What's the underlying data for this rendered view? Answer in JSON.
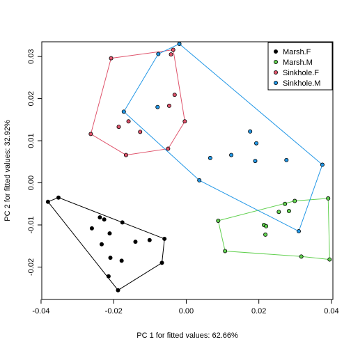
{
  "chart_data": {
    "type": "scatter",
    "title": "",
    "xlabel": "PC 1 for fitted values: 62.66%",
    "ylabel": "PC 2 for fitted values: 32.92%",
    "xlim": [
      -0.0398,
      0.0404
    ],
    "ylim": [
      -0.0277,
      0.0335
    ],
    "x_ticks": [
      -0.04,
      -0.02,
      0.0,
      0.02,
      0.04
    ],
    "x_tick_labels": [
      "-0.04",
      "-0.02",
      "0.00",
      "0.02",
      "0.04"
    ],
    "y_ticks": [
      -0.02,
      -0.01,
      0.0,
      0.01,
      0.02,
      0.03
    ],
    "y_tick_labels": [
      "-0.02",
      "-0.01",
      "0.00",
      "0.01",
      "0.02",
      "0.03"
    ],
    "grid": false,
    "legend_position": "top-right",
    "hull_outlines": true,
    "series": [
      {
        "name": "Marsh.F",
        "color": "#000000",
        "hull_color": "#000000",
        "points": [
          [
            -0.0381,
            -0.0045
          ],
          [
            -0.0352,
            -0.0035
          ],
          [
            -0.026,
            -0.0108
          ],
          [
            -0.0238,
            -0.0082
          ],
          [
            -0.0226,
            -0.0087
          ],
          [
            -0.0211,
            -0.012
          ],
          [
            -0.0233,
            -0.0146
          ],
          [
            -0.0176,
            -0.0094
          ],
          [
            -0.014,
            -0.014
          ],
          [
            -0.0101,
            -0.0136
          ],
          [
            -0.006,
            -0.0133
          ],
          [
            -0.0209,
            -0.0178
          ],
          [
            -0.0178,
            -0.0185
          ],
          [
            -0.0214,
            -0.0222
          ],
          [
            -0.0188,
            -0.0255
          ],
          [
            -0.0067,
            -0.019
          ]
        ],
        "hull": [
          [
            -0.0381,
            -0.0045
          ],
          [
            -0.0352,
            -0.0035
          ],
          [
            -0.006,
            -0.0133
          ],
          [
            -0.0067,
            -0.019
          ],
          [
            -0.0188,
            -0.0255
          ],
          [
            -0.0381,
            -0.0045
          ]
        ]
      },
      {
        "name": "Marsh.M",
        "color": "#61D04F",
        "hull_color": "#61D04F",
        "points": [
          [
            0.0088,
            -0.009
          ],
          [
            0.0107,
            -0.0162
          ],
          [
            0.0214,
            -0.01
          ],
          [
            0.022,
            -0.0103
          ],
          [
            0.0218,
            -0.0123
          ],
          [
            0.0255,
            -0.0069
          ],
          [
            0.0272,
            -0.005
          ],
          [
            0.0283,
            -0.0067
          ],
          [
            0.0299,
            -0.0043
          ],
          [
            0.0317,
            -0.0175
          ],
          [
            0.0391,
            -0.0037
          ],
          [
            0.0395,
            -0.0182
          ]
        ],
        "hull": [
          [
            0.0088,
            -0.009
          ],
          [
            0.0299,
            -0.0043
          ],
          [
            0.0391,
            -0.0037
          ],
          [
            0.0395,
            -0.0182
          ],
          [
            0.0317,
            -0.0175
          ],
          [
            0.0107,
            -0.0162
          ],
          [
            0.0088,
            -0.009
          ]
        ]
      },
      {
        "name": "Sinkhole.F",
        "color": "#DF536B",
        "hull_color": "#DF536B",
        "points": [
          [
            -0.0207,
            0.0296
          ],
          [
            -0.0263,
            0.0116
          ],
          [
            -0.0166,
            0.0066
          ],
          [
            -0.0186,
            0.0133
          ],
          [
            -0.0159,
            0.0146
          ],
          [
            -0.0127,
            0.0121
          ],
          [
            -0.0036,
            0.0316
          ],
          [
            -0.0042,
            0.0305
          ],
          [
            -0.0032,
            0.0209
          ],
          [
            -0.0047,
            0.0183
          ],
          [
            -0.005,
            0.0081
          ],
          [
            -0.0004,
            0.0146
          ]
        ],
        "hull": [
          [
            -0.0207,
            0.0296
          ],
          [
            -0.0036,
            0.0316
          ],
          [
            -0.0004,
            0.0146
          ],
          [
            -0.005,
            0.0081
          ],
          [
            -0.0166,
            0.0066
          ],
          [
            -0.0263,
            0.0116
          ],
          [
            -0.0207,
            0.0296
          ]
        ]
      },
      {
        "name": "Sinkhole.M",
        "color": "#2297E6",
        "hull_color": "#2297E6",
        "points": [
          [
            -0.0172,
            0.0169
          ],
          [
            -0.0077,
            0.0306
          ],
          [
            -0.0019,
            0.033
          ],
          [
            -0.0079,
            0.018
          ],
          [
            0.0036,
            0.0006
          ],
          [
            0.0066,
            0.0059
          ],
          [
            0.0124,
            0.0066
          ],
          [
            0.0176,
            0.0122
          ],
          [
            0.0193,
            0.0094
          ],
          [
            0.019,
            0.0052
          ],
          [
            0.0276,
            0.0054
          ],
          [
            0.0375,
            0.0043
          ],
          [
            0.031,
            -0.0115
          ]
        ],
        "hull": [
          [
            -0.0172,
            0.0169
          ],
          [
            -0.0077,
            0.0306
          ],
          [
            -0.0019,
            0.033
          ],
          [
            0.0375,
            0.0043
          ],
          [
            0.031,
            -0.0115
          ],
          [
            0.0036,
            0.0006
          ],
          [
            -0.0172,
            0.0169
          ]
        ]
      }
    ]
  }
}
